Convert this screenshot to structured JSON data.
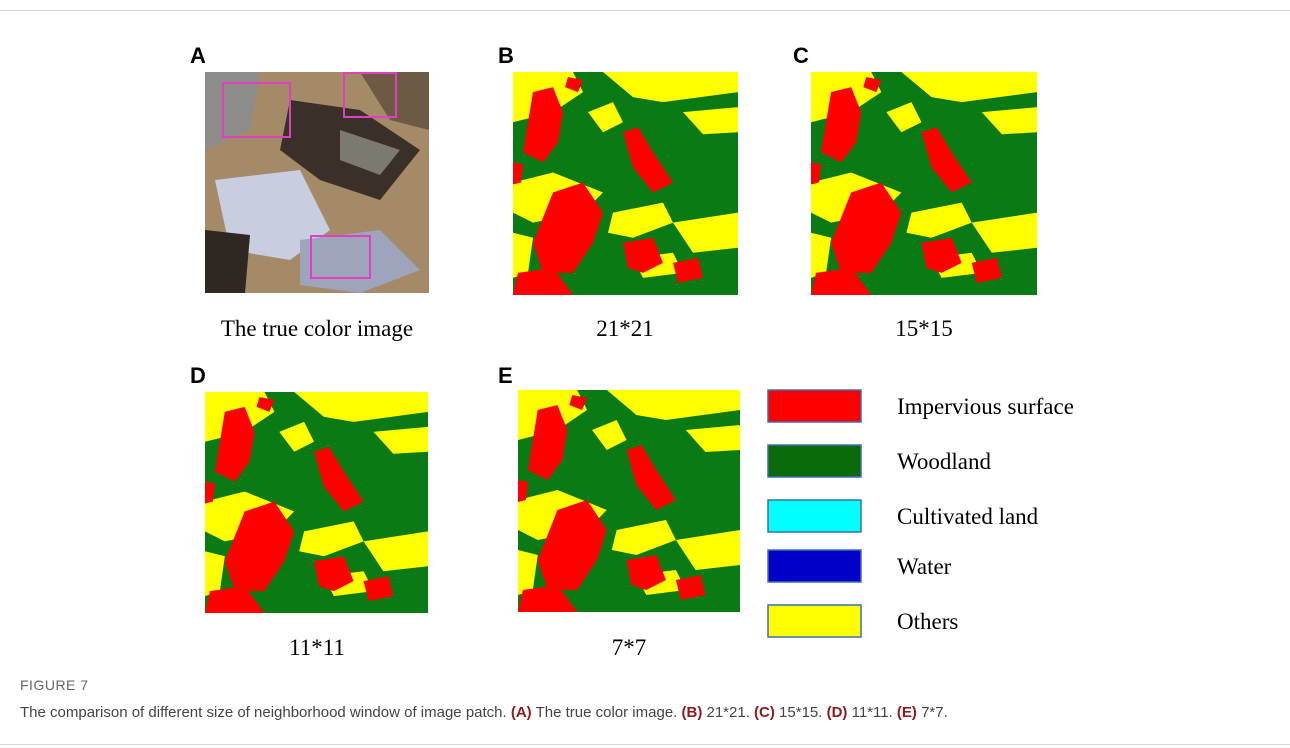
{
  "figure": {
    "panels": [
      {
        "label": "A",
        "caption": "The true color image"
      },
      {
        "label": "B",
        "caption": "21*21"
      },
      {
        "label": "C",
        "caption": "15*15"
      },
      {
        "label": "D",
        "caption": "11*11"
      },
      {
        "label": "E",
        "caption": "7*7"
      }
    ],
    "legend": [
      {
        "label": "Impervious surface",
        "color": "#ff0000"
      },
      {
        "label": "Woodland",
        "color": "#0a6b0a"
      },
      {
        "label": "Cultivated land",
        "color": "#00ffff"
      },
      {
        "label": "Water",
        "color": "#0000c8"
      },
      {
        "label": "Others",
        "color": "#ffff00"
      }
    ],
    "figure_label": "FIGURE 7",
    "caption": {
      "text": "The comparison of different size of neighborhood window of image patch.",
      "parts": [
        {
          "ref": "(A)",
          "text": "The true color image."
        },
        {
          "ref": "(B)",
          "text": "21*21."
        },
        {
          "ref": "(C)",
          "text": "15*15."
        },
        {
          "ref": "(D)",
          "text": "11*11."
        },
        {
          "ref": "(E)",
          "text": "7*7."
        }
      ]
    }
  }
}
